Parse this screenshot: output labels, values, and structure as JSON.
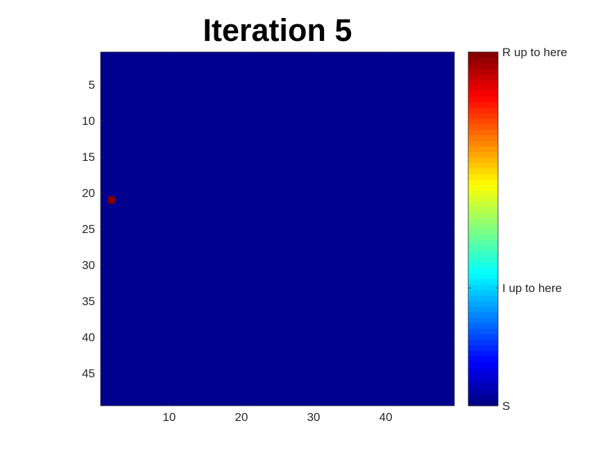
{
  "chart_data": {
    "type": "heatmap",
    "title": "Iteration 5",
    "grid": {
      "rows": 49,
      "cols": 49
    },
    "background_value": 0,
    "background_color": "#00008F",
    "cells": [
      {
        "row": 21,
        "col": 2,
        "value": 1,
        "color": "#800000"
      }
    ],
    "x_ticks": [
      10,
      20,
      30,
      40
    ],
    "y_ticks": [
      5,
      10,
      15,
      20,
      25,
      30,
      35,
      40,
      45
    ],
    "xlim": [
      0.5,
      49.5
    ],
    "ylim": [
      0.5,
      49.5
    ],
    "y_reversed": true,
    "grid_lines": false,
    "colormap": "jet",
    "colorbar": {
      "placement": "right",
      "min": 0,
      "max": 1,
      "ticks": [
        {
          "value": 0,
          "label": "S"
        },
        {
          "value": 0.333,
          "label": "I up to here"
        },
        {
          "value": 1,
          "label": "R up to here"
        }
      ]
    }
  }
}
